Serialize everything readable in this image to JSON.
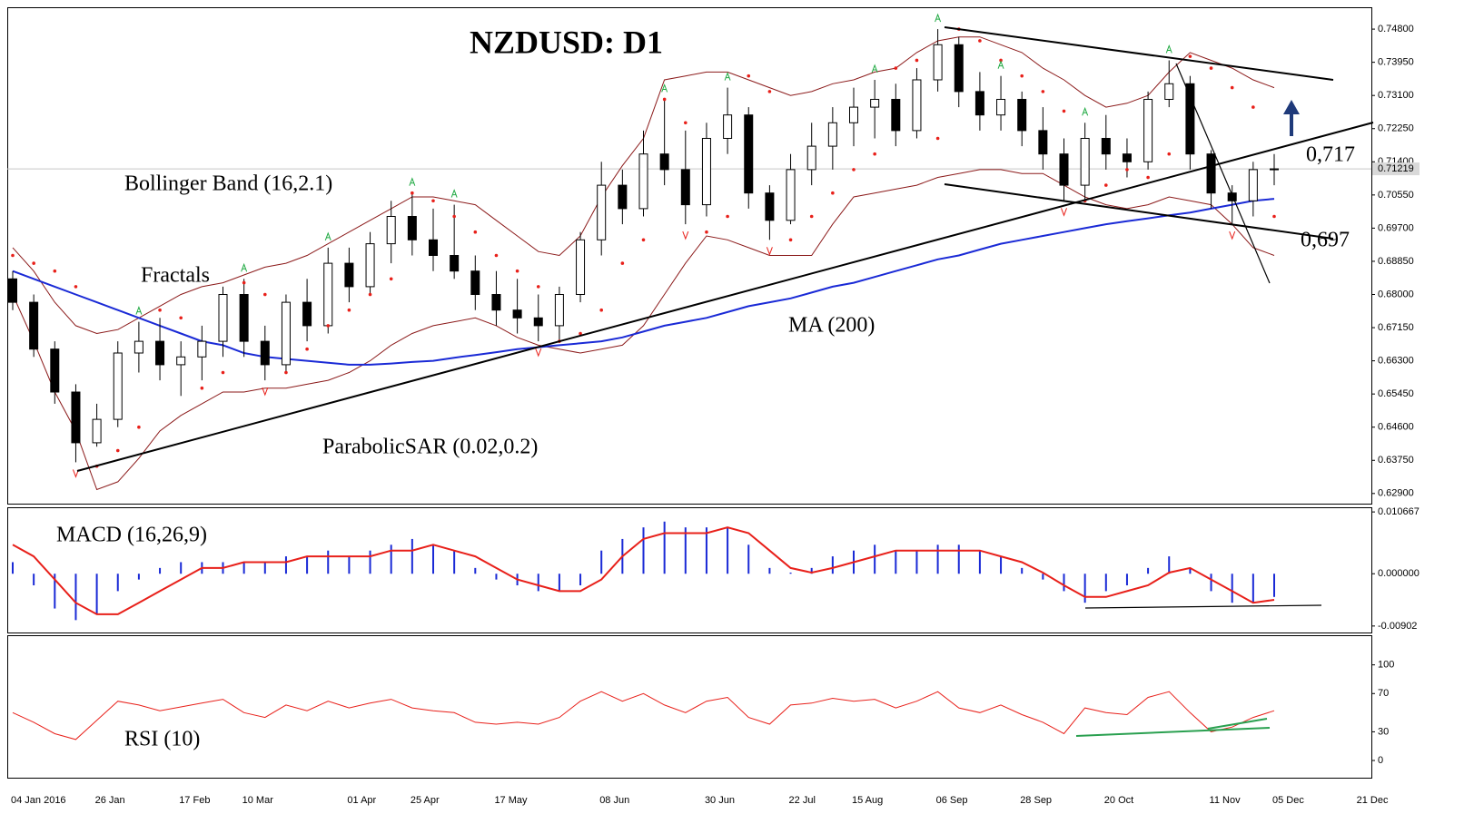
{
  "chart_data": [
    {
      "type": "candlestick",
      "title": "NZDUSD: D1",
      "categories": [
        "04 Jan 2016",
        null,
        null,
        null,
        "26 Jan",
        null,
        null,
        null,
        "17 Feb",
        null,
        null,
        "10 Mar",
        null,
        null,
        null,
        null,
        "01 Apr",
        null,
        null,
        "25 Apr",
        null,
        null,
        null,
        "17 May",
        null,
        null,
        null,
        null,
        "08 Jun",
        null,
        null,
        null,
        null,
        "30 Jun",
        null,
        null,
        null,
        "22 Jul",
        null,
        null,
        "15 Aug",
        null,
        null,
        null,
        "06 Sep",
        null,
        null,
        null,
        "28 Sep",
        null,
        null,
        null,
        "20 Oct",
        null,
        null,
        null,
        null,
        "11 Nov",
        null,
        null,
        "05 Dec",
        null,
        null,
        null,
        "21 Dec"
      ],
      "open": [
        0.684,
        0.678,
        0.666,
        0.655,
        0.642,
        0.648,
        0.665,
        0.668,
        0.662,
        0.664,
        0.668,
        0.68,
        0.668,
        0.662,
        0.678,
        0.672,
        0.688,
        0.682,
        0.693,
        0.7,
        0.694,
        0.69,
        0.686,
        0.68,
        0.676,
        0.674,
        0.672,
        0.68,
        0.694,
        0.708,
        0.702,
        0.716,
        0.712,
        0.703,
        0.72,
        0.726,
        0.706,
        0.699,
        0.712,
        0.718,
        0.724,
        0.728,
        0.73,
        0.722,
        0.735,
        0.744,
        0.732,
        0.726,
        0.73,
        0.722,
        0.716,
        0.708,
        0.72,
        0.716,
        0.714,
        0.73,
        0.734,
        0.716,
        0.706,
        0.704,
        0.712,
        null,
        null,
        null,
        null
      ],
      "high": [
        0.686,
        0.68,
        0.668,
        0.657,
        0.652,
        0.668,
        0.673,
        0.674,
        0.668,
        0.672,
        0.682,
        0.684,
        0.672,
        0.68,
        0.684,
        0.692,
        0.692,
        0.696,
        0.704,
        0.706,
        0.702,
        0.703,
        0.69,
        0.686,
        0.684,
        0.68,
        0.682,
        0.696,
        0.714,
        0.712,
        0.722,
        0.73,
        0.722,
        0.724,
        0.733,
        0.728,
        0.708,
        0.716,
        0.724,
        0.728,
        0.733,
        0.735,
        0.734,
        0.738,
        0.748,
        0.746,
        0.737,
        0.736,
        0.732,
        0.728,
        0.72,
        0.724,
        0.726,
        0.72,
        0.732,
        0.74,
        0.736,
        0.717,
        0.708,
        0.714,
        0.716,
        null,
        null,
        null,
        null
      ],
      "low": [
        0.676,
        0.664,
        0.652,
        0.637,
        0.641,
        0.646,
        0.66,
        0.658,
        0.654,
        0.658,
        0.664,
        0.664,
        0.658,
        0.66,
        0.668,
        0.67,
        0.678,
        0.68,
        0.688,
        0.69,
        0.686,
        0.684,
        0.676,
        0.672,
        0.67,
        0.668,
        0.668,
        0.678,
        0.69,
        0.698,
        0.7,
        0.708,
        0.698,
        0.7,
        0.716,
        0.702,
        0.694,
        0.698,
        0.708,
        0.712,
        0.718,
        0.72,
        0.718,
        0.72,
        0.732,
        0.728,
        0.722,
        0.722,
        0.718,
        0.712,
        0.704,
        0.704,
        0.712,
        0.71,
        0.712,
        0.728,
        0.712,
        0.702,
        0.698,
        0.7,
        0.708,
        null,
        null,
        null,
        null
      ],
      "close": [
        0.678,
        0.666,
        0.655,
        0.642,
        0.648,
        0.665,
        0.668,
        0.662,
        0.664,
        0.668,
        0.68,
        0.668,
        0.662,
        0.678,
        0.672,
        0.688,
        0.682,
        0.693,
        0.7,
        0.694,
        0.69,
        0.686,
        0.68,
        0.676,
        0.674,
        0.672,
        0.68,
        0.694,
        0.708,
        0.702,
        0.716,
        0.712,
        0.703,
        0.72,
        0.726,
        0.706,
        0.699,
        0.712,
        0.718,
        0.724,
        0.728,
        0.73,
        0.722,
        0.735,
        0.744,
        0.732,
        0.726,
        0.73,
        0.722,
        0.716,
        0.708,
        0.72,
        0.716,
        0.714,
        0.73,
        0.734,
        0.716,
        0.706,
        0.704,
        0.712,
        0.71219,
        null,
        null,
        null,
        null
      ],
      "candle_colors": {
        "up": "#ffffff",
        "down": "#000000"
      },
      "last_price": 0.71219,
      "ylim": [
        0.6264,
        0.7536
      ],
      "yticks": [
        {
          "value": 0.748,
          "label": "0.74800"
        },
        {
          "value": 0.7395,
          "label": "0.73950"
        },
        {
          "value": 0.731,
          "label": "0.73100"
        },
        {
          "value": 0.7225,
          "label": "0.72250"
        },
        {
          "value": 0.714,
          "label": "0.71400"
        },
        {
          "value": 0.7055,
          "label": "0.70550"
        },
        {
          "value": 0.697,
          "label": "0.69700"
        },
        {
          "value": 0.6885,
          "label": "0.68850"
        },
        {
          "value": 0.68,
          "label": "0.68000"
        },
        {
          "value": 0.6715,
          "label": "0.67150"
        },
        {
          "value": 0.663,
          "label": "0.66300"
        },
        {
          "value": 0.6545,
          "label": "0.65450"
        },
        {
          "value": 0.646,
          "label": "0.64600"
        },
        {
          "value": 0.6375,
          "label": "0.63750"
        },
        {
          "value": 0.629,
          "label": "0.62900"
        }
      ],
      "series": [
        {
          "name": "MA (200)",
          "color": "#1a2ad6",
          "values": [
            0.686,
            0.684,
            0.682,
            0.68,
            0.678,
            0.676,
            0.674,
            0.672,
            0.67,
            0.668,
            0.667,
            0.665,
            0.664,
            0.6635,
            0.663,
            0.6625,
            0.662,
            0.662,
            0.6623,
            0.6627,
            0.663,
            0.6638,
            0.6645,
            0.6652,
            0.666,
            0.6665,
            0.667,
            0.6675,
            0.668,
            0.669,
            0.6705,
            0.672,
            0.673,
            0.674,
            0.6755,
            0.677,
            0.678,
            0.679,
            0.6805,
            0.682,
            0.683,
            0.6845,
            0.686,
            0.6875,
            0.689,
            0.69,
            0.6915,
            0.693,
            0.694,
            0.695,
            0.696,
            0.697,
            0.698,
            0.6988,
            0.6995,
            0.7003,
            0.701,
            0.702,
            0.703,
            0.704,
            0.7045,
            null,
            null,
            null,
            null
          ]
        }
      ],
      "bollinger": {
        "name": "Bollinger Band (16,2.1)",
        "color": "#8b1a1a",
        "upper": [
          0.692,
          0.686,
          0.678,
          0.672,
          0.67,
          0.671,
          0.674,
          0.677,
          0.68,
          0.682,
          0.683,
          0.685,
          0.687,
          0.688,
          0.69,
          0.693,
          0.696,
          0.699,
          0.702,
          0.705,
          0.705,
          0.704,
          0.703,
          0.699,
          0.695,
          0.691,
          0.69,
          0.695,
          0.705,
          0.713,
          0.72,
          0.735,
          0.736,
          0.737,
          0.737,
          0.735,
          0.733,
          0.731,
          0.732,
          0.734,
          0.735,
          0.737,
          0.738,
          0.742,
          0.745,
          0.746,
          0.746,
          0.744,
          0.742,
          0.738,
          0.735,
          0.731,
          0.728,
          0.729,
          0.731,
          0.737,
          0.742,
          0.74,
          0.738,
          0.735,
          0.733,
          null,
          null,
          null,
          null
        ],
        "lower": [
          0.68,
          0.668,
          0.655,
          0.645,
          0.63,
          0.632,
          0.638,
          0.645,
          0.649,
          0.652,
          0.655,
          0.655,
          0.656,
          0.656,
          0.657,
          0.658,
          0.66,
          0.663,
          0.667,
          0.67,
          0.672,
          0.673,
          0.674,
          0.672,
          0.669,
          0.667,
          0.666,
          0.665,
          0.666,
          0.667,
          0.672,
          0.68,
          0.688,
          0.695,
          0.694,
          0.692,
          0.69,
          0.69,
          0.69,
          0.698,
          0.705,
          0.706,
          0.707,
          0.708,
          0.71,
          0.711,
          0.712,
          0.712,
          0.711,
          0.711,
          0.708,
          0.705,
          0.703,
          0.702,
          0.703,
          0.705,
          0.704,
          0.703,
          0.698,
          0.692,
          0.69,
          null,
          null,
          null,
          null
        ]
      },
      "sar": {
        "name": "ParabolicSAR (0.02,0.2)",
        "color": "#e8201a",
        "values": [
          0.69,
          0.688,
          0.686,
          0.682,
          0.636,
          0.64,
          0.646,
          0.676,
          0.674,
          0.656,
          0.66,
          0.683,
          0.68,
          0.66,
          0.666,
          0.672,
          0.676,
          0.68,
          0.684,
          0.706,
          0.704,
          0.7,
          0.696,
          0.69,
          0.686,
          0.682,
          0.668,
          0.67,
          0.676,
          0.688,
          0.694,
          0.73,
          0.724,
          0.696,
          0.7,
          0.736,
          0.732,
          0.694,
          0.7,
          0.706,
          0.712,
          0.716,
          0.738,
          0.74,
          0.72,
          0.748,
          0.745,
          0.74,
          0.736,
          0.732,
          0.727,
          0.704,
          0.708,
          0.712,
          0.71,
          0.716,
          0.741,
          0.738,
          0.733,
          0.728,
          0.7,
          null,
          null,
          null,
          null
        ]
      },
      "fractals": {
        "name": "Fractals",
        "up_color": "#22aa44",
        "down_color": "#e8201a",
        "up": [
          null,
          null,
          null,
          null,
          null,
          null,
          0.673,
          null,
          null,
          null,
          null,
          0.684,
          null,
          null,
          null,
          0.692,
          null,
          null,
          null,
          0.706,
          null,
          0.703,
          null,
          null,
          null,
          null,
          null,
          null,
          null,
          null,
          null,
          0.73,
          null,
          null,
          0.733,
          null,
          null,
          null,
          null,
          null,
          null,
          0.735,
          null,
          null,
          0.748,
          null,
          null,
          0.736,
          null,
          null,
          null,
          0.724,
          null,
          null,
          null,
          0.74,
          null,
          null,
          null,
          null,
          null,
          null,
          null,
          null,
          null
        ],
        "down": [
          null,
          null,
          null,
          0.637,
          null,
          null,
          null,
          null,
          null,
          null,
          null,
          null,
          0.658,
          null,
          null,
          null,
          null,
          null,
          null,
          null,
          null,
          null,
          null,
          null,
          null,
          0.668,
          null,
          null,
          null,
          null,
          null,
          null,
          0.698,
          null,
          null,
          null,
          0.694,
          null,
          null,
          null,
          null,
          null,
          null,
          null,
          null,
          null,
          null,
          null,
          null,
          null,
          0.704,
          null,
          null,
          null,
          null,
          null,
          null,
          null,
          0.698,
          null,
          null,
          null,
          null,
          null,
          null
        ]
      },
      "annotations": [
        "0,717",
        "0,697"
      ]
    },
    {
      "type": "macd",
      "title": "MACD (16,26,9)",
      "histogram": {
        "color": "#1a2ad6",
        "values": [
          0.002,
          -0.002,
          -0.006,
          -0.008,
          -0.007,
          -0.003,
          -0.001,
          0.001,
          0.002,
          0.002,
          0.002,
          0.002,
          0.002,
          0.003,
          0.003,
          0.004,
          0.003,
          0.004,
          0.005,
          0.006,
          0.005,
          0.004,
          0.001,
          -0.001,
          -0.002,
          -0.003,
          -0.003,
          -0.002,
          0.004,
          0.006,
          0.008,
          0.009,
          0.008,
          0.008,
          0.008,
          0.005,
          0.001,
          0.0002,
          0.001,
          0.003,
          0.004,
          0.005,
          0.004,
          0.004,
          0.005,
          0.005,
          0.004,
          0.003,
          0.001,
          -0.001,
          -0.003,
          -0.005,
          -0.003,
          -0.002,
          0.001,
          0.003,
          0.001,
          -0.003,
          -0.005,
          -0.005,
          -0.004,
          null,
          null,
          null,
          null
        ]
      },
      "signal": {
        "color": "#e8201a",
        "values": [
          0.005,
          0.003,
          -0.001,
          -0.005,
          -0.007,
          -0.007,
          -0.005,
          -0.003,
          -0.001,
          0.001,
          0.001,
          0.002,
          0.002,
          0.002,
          0.003,
          0.003,
          0.003,
          0.003,
          0.004,
          0.004,
          0.005,
          0.004,
          0.003,
          0.001,
          -0.001,
          -0.002,
          -0.003,
          -0.003,
          -0.001,
          0.003,
          0.006,
          0.007,
          0.007,
          0.007,
          0.008,
          0.007,
          0.004,
          0.001,
          0.0002,
          0.001,
          0.002,
          0.003,
          0.004,
          0.004,
          0.004,
          0.004,
          0.004,
          0.003,
          0.002,
          0.0002,
          -0.002,
          -0.004,
          -0.004,
          -0.003,
          -0.002,
          0.0002,
          0.001,
          -0.001,
          -0.003,
          -0.005,
          -0.0045,
          null,
          null,
          null,
          null
        ]
      },
      "ylim": [
        -0.01014,
        0.01147
      ],
      "yticks": [
        0.010667,
        {
          "value": 0,
          "label": "0.000000"
        },
        -0.00902
      ]
    },
    {
      "type": "line",
      "title": "RSI (10)",
      "series": [
        {
          "color": "#e8201a",
          "values": [
            50,
            40,
            28,
            22,
            42,
            62,
            58,
            52,
            56,
            60,
            64,
            50,
            45,
            58,
            52,
            62,
            55,
            60,
            64,
            55,
            52,
            50,
            40,
            38,
            40,
            38,
            45,
            62,
            72,
            62,
            70,
            58,
            50,
            62,
            66,
            45,
            38,
            58,
            60,
            65,
            62,
            64,
            55,
            62,
            72,
            55,
            50,
            58,
            48,
            40,
            28,
            55,
            50,
            48,
            66,
            72,
            50,
            30,
            35,
            45,
            52,
            null,
            null,
            null,
            null
          ]
        }
      ],
      "ylim": [
        -18,
        131
      ],
      "yticks": [
        0,
        30,
        70,
        100
      ]
    }
  ]
}
